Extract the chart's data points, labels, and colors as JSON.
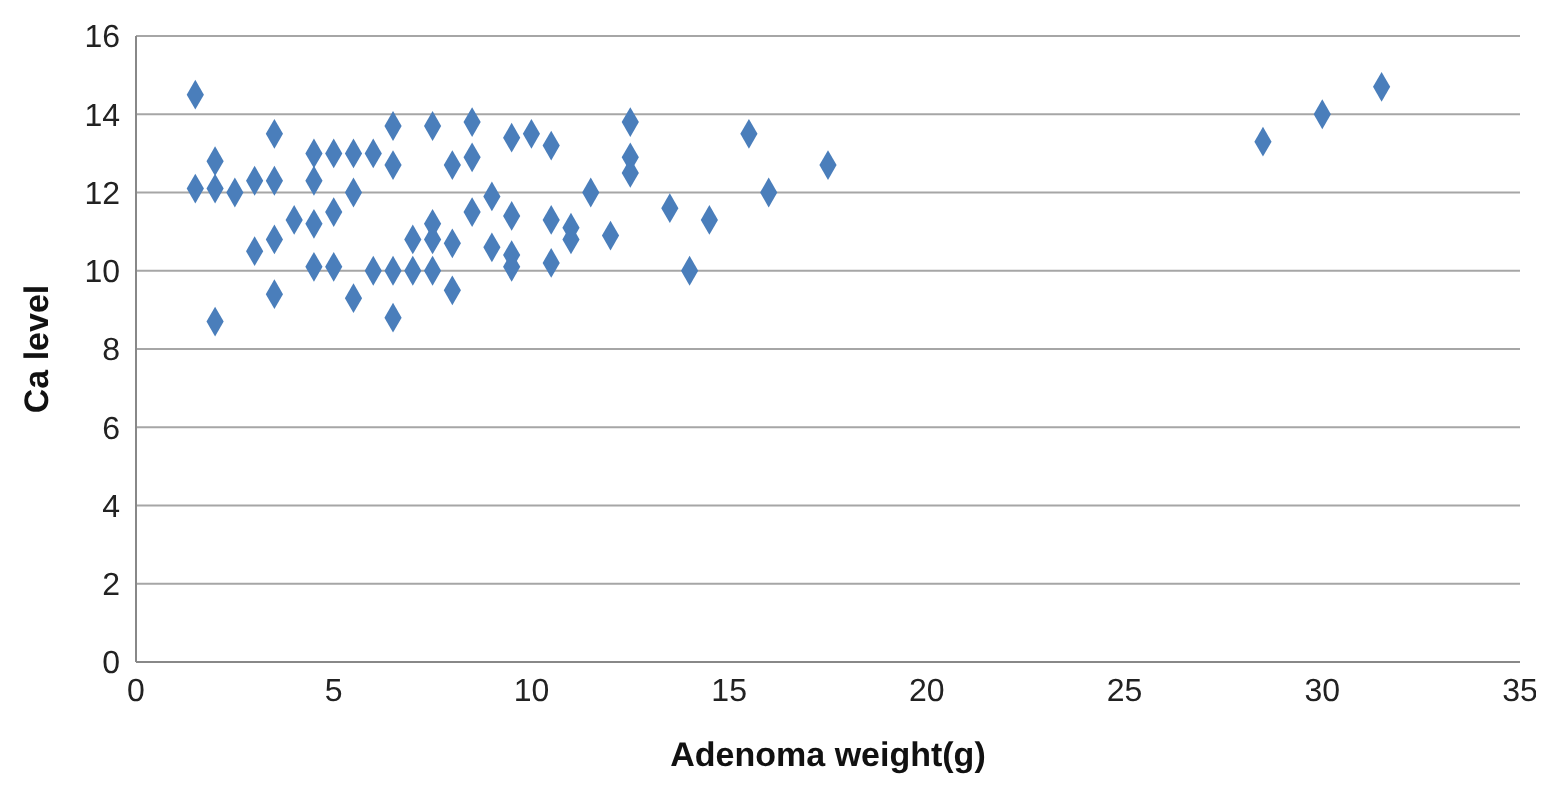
{
  "chart_data": {
    "type": "scatter",
    "xlabel": "Adenoma weight(g)",
    "ylabel": "Ca level",
    "xlim": [
      0,
      35
    ],
    "xticks": [
      0,
      5,
      10,
      15,
      20,
      25,
      30,
      35
    ],
    "ylim": [
      0,
      16
    ],
    "yticks": [
      0,
      2,
      4,
      6,
      8,
      10,
      12,
      14,
      16
    ],
    "grid": "y",
    "marker": "diamond",
    "series": [
      {
        "color": "#4a7ebb",
        "x": [
          1.5,
          1.5,
          2,
          2,
          2,
          2.5,
          3,
          3,
          3.5,
          3.5,
          3.5,
          3.5,
          4,
          4.5,
          4.5,
          4.5,
          4.5,
          5,
          5,
          5,
          5.5,
          5.5,
          5.5,
          6,
          6,
          6.5,
          6.5,
          6.5,
          6.5,
          7,
          7,
          7.5,
          7.5,
          7.5,
          7.5,
          8,
          8,
          8,
          8.5,
          8.5,
          8.5,
          9,
          9,
          9.5,
          9.5,
          9.5,
          9.5,
          10,
          10.5,
          10.5,
          10.5,
          11,
          11,
          11.5,
          12,
          12.5,
          12.5,
          12.5,
          13.5,
          14,
          14.5,
          15.5,
          16,
          17.5,
          28.5,
          30,
          31.5
        ],
        "values": [
          14.5,
          12.1,
          12.8,
          12.1,
          8.7,
          12.0,
          12.3,
          10.5,
          13.5,
          12.3,
          10.8,
          9.4,
          11.3,
          13.0,
          12.3,
          11.2,
          10.1,
          13.0,
          11.5,
          10.1,
          13.0,
          12.0,
          9.3,
          13.0,
          10.0,
          13.7,
          12.7,
          10.0,
          8.8,
          10.8,
          10.0,
          13.7,
          11.2,
          10.8,
          10.0,
          12.7,
          10.7,
          9.5,
          13.8,
          12.9,
          11.5,
          11.9,
          10.6,
          13.4,
          11.4,
          10.4,
          10.1,
          13.5,
          13.2,
          11.3,
          10.2,
          11.1,
          10.8,
          12.0,
          10.9,
          13.8,
          12.9,
          12.5,
          11.6,
          10.0,
          11.3,
          13.5,
          12.0,
          12.7,
          13.3,
          14.0,
          14.7
        ]
      }
    ]
  }
}
